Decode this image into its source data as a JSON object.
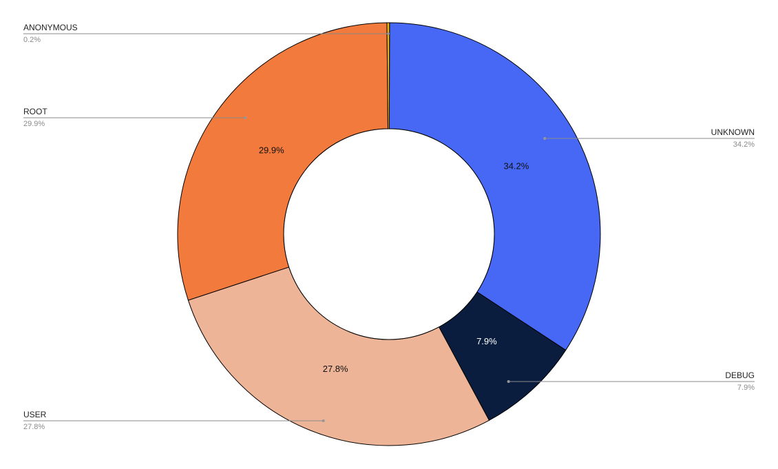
{
  "chart_data": {
    "type": "pie",
    "variant": "donut",
    "slices": [
      {
        "label": "UNKNOWN",
        "value": 34.2,
        "value_label": "34.2%",
        "color": "#4668F4"
      },
      {
        "label": "DEBUG",
        "value": 7.9,
        "value_label": "7.9%",
        "color": "#0A1D3F"
      },
      {
        "label": "USER",
        "value": 27.8,
        "value_label": "27.8%",
        "color": "#EDB497"
      },
      {
        "label": "ROOT",
        "value": 29.9,
        "value_label": "29.9%",
        "color": "#F27A3C"
      },
      {
        "label": "ANONYMOUS",
        "value": 0.2,
        "value_label": "0.2%",
        "color": "#F4B400"
      }
    ],
    "legend": "leader-labels"
  }
}
